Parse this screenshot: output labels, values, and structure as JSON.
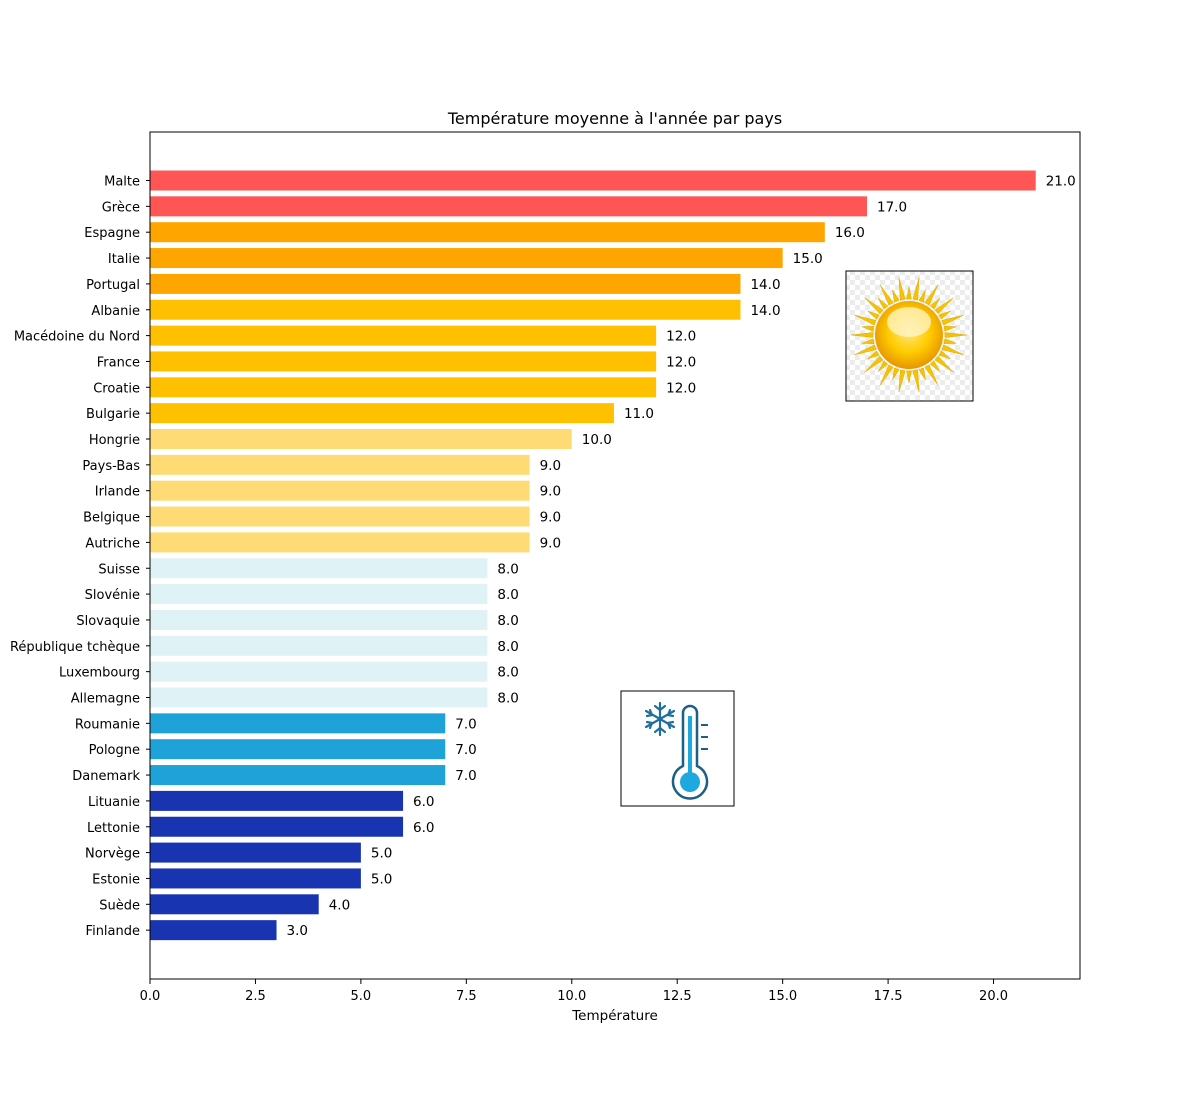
{
  "chart_data": {
    "type": "bar",
    "orientation": "horizontal",
    "title": "Température moyenne à l'année par pays",
    "xlabel": "Température",
    "ylabel": "",
    "xlim": [
      0,
      22.05
    ],
    "xticks": [
      "0.0",
      "2.5",
      "5.0",
      "7.5",
      "10.0",
      "12.5",
      "15.0",
      "17.5",
      "20.0"
    ],
    "grid": false,
    "categories": [
      "Malte",
      "Grèce",
      "Espagne",
      "Italie",
      "Portugal",
      "Albanie",
      "Macédoine du Nord",
      "France",
      "Croatie",
      "Bulgarie",
      "Hongrie",
      "Pays-Bas",
      "Irlande",
      "Belgique",
      "Autriche",
      "Suisse",
      "Slovénie",
      "Slovaquie",
      "République tchèque",
      "Luxembourg",
      "Allemagne",
      "Roumanie",
      "Pologne",
      "Danemark",
      "Lituanie",
      "Lettonie",
      "Norvège",
      "Estonie",
      "Suède",
      "Finlande"
    ],
    "values": [
      21.0,
      17.0,
      16.0,
      15.0,
      14.0,
      14.0,
      12.0,
      12.0,
      12.0,
      11.0,
      10.0,
      9.0,
      9.0,
      9.0,
      9.0,
      8.0,
      8.0,
      8.0,
      8.0,
      8.0,
      8.0,
      7.0,
      7.0,
      7.0,
      6.0,
      6.0,
      5.0,
      5.0,
      4.0,
      3.0
    ],
    "value_labels": [
      "21.0",
      "17.0",
      "16.0",
      "15.0",
      "14.0",
      "14.0",
      "12.0",
      "12.0",
      "12.0",
      "11.0",
      "10.0",
      "9.0",
      "9.0",
      "9.0",
      "9.0",
      "8.0",
      "8.0",
      "8.0",
      "8.0",
      "8.0",
      "8.0",
      "7.0",
      "7.0",
      "7.0",
      "6.0",
      "6.0",
      "5.0",
      "5.0",
      "4.0",
      "3.0"
    ],
    "colors": [
      "#ff5555",
      "#ff5555",
      "#ffa500",
      "#ffa500",
      "#ffa500",
      "#ffc000",
      "#ffc000",
      "#ffc000",
      "#ffc000",
      "#ffc000",
      "#ffdb76",
      "#ffdb76",
      "#ffdb76",
      "#ffdb76",
      "#ffdb76",
      "#dff2f5",
      "#dff2f5",
      "#dff2f5",
      "#dff2f5",
      "#dff2f5",
      "#dff2f5",
      "#1fa2d8",
      "#1fa2d8",
      "#1fa2d8",
      "#1934b0",
      "#1934b0",
      "#1934b0",
      "#1934b0",
      "#1934b0",
      "#1934b0"
    ],
    "icons": [
      "sun-icon",
      "cold-thermometer-icon"
    ]
  }
}
